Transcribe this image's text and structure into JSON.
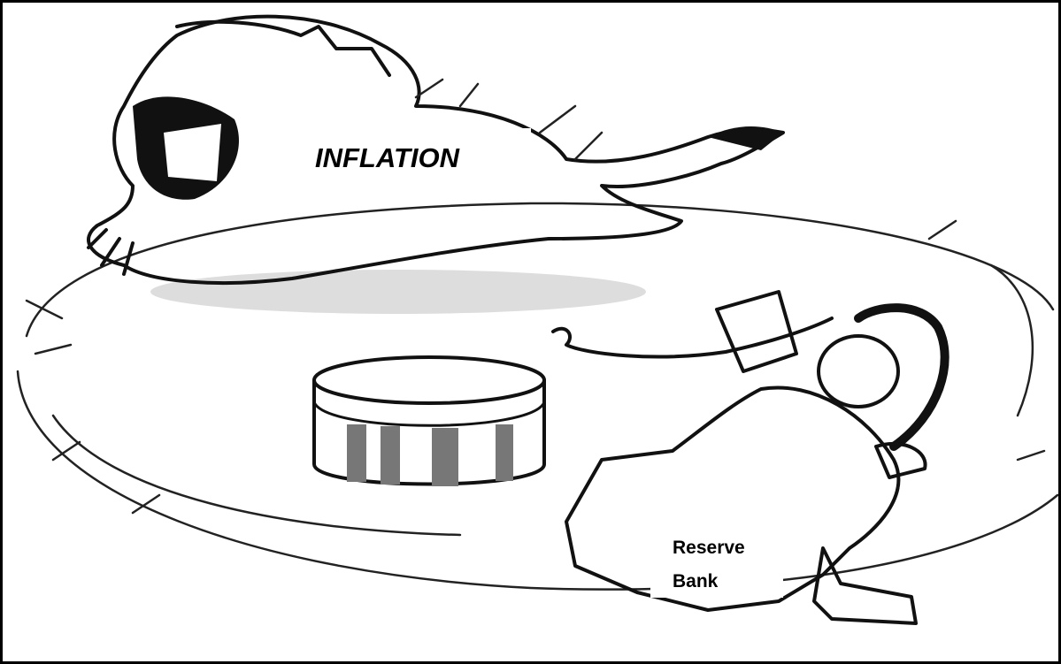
{
  "lion_label": "INFLATION",
  "ringmaster_label": [
    "Reserve",
    "Bank"
  ]
}
